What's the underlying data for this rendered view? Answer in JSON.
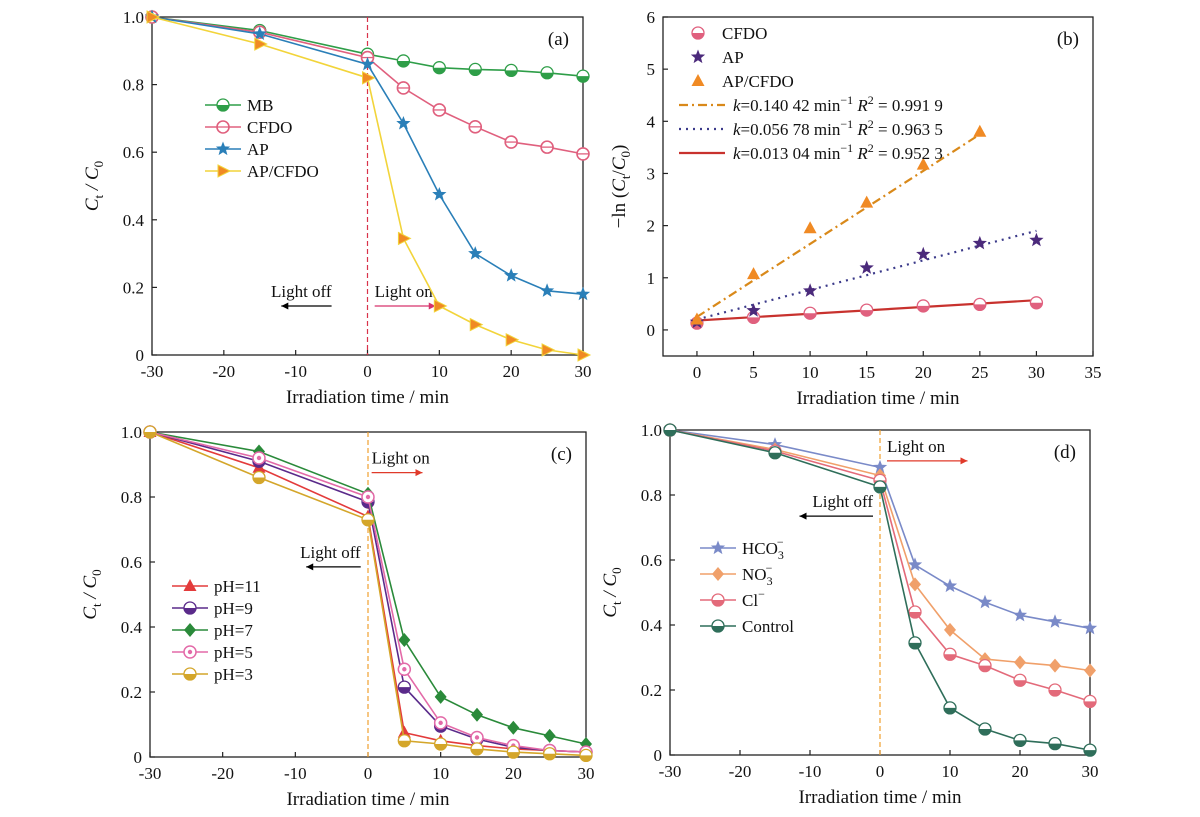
{
  "chart_data": [
    {
      "type": "line",
      "panel_label": "(a)",
      "xlabel": "Irradiation time / min",
      "ylabel_main": "C",
      "ylabel_sub": "t",
      "ylabel_mid": " / C",
      "ylabel_sub2": "0",
      "xlim": [
        -30,
        30
      ],
      "ylim": [
        0,
        1.0
      ],
      "xticks": [
        "-30",
        "-20",
        "-10",
        "0",
        "10",
        "20",
        "30"
      ],
      "yticks": [
        "0",
        "0.2",
        "0.4",
        "0.6",
        "0.8",
        "1.0"
      ],
      "xtick_values": [
        -30,
        -20,
        -10,
        0,
        10,
        20,
        30
      ],
      "ytick_values": [
        0,
        0.2,
        0.4,
        0.6,
        0.8,
        1.0
      ],
      "vline_x": 0,
      "annotations": [
        {
          "text": "Light off",
          "x": -5,
          "y": 0.145,
          "arrow_to": -12,
          "color": "#000000"
        },
        {
          "text": "Light on",
          "x": 1,
          "y": 0.145,
          "arrow_to": 9.5,
          "color": "#d6336c"
        }
      ],
      "legend_position": "left-middle",
      "series": [
        {
          "name": "MB",
          "color": "#2e9e48",
          "marker": "circle-half",
          "x": [
            -30,
            -15,
            0,
            5,
            10,
            15,
            20,
            25,
            30
          ],
          "y": [
            1.0,
            0.96,
            0.89,
            0.87,
            0.85,
            0.845,
            0.842,
            0.835,
            0.825
          ]
        },
        {
          "name": "CFDO",
          "color": "#e0607e",
          "marker": "circle-open",
          "x": [
            -30,
            -15,
            0,
            5,
            10,
            15,
            20,
            25,
            30
          ],
          "y": [
            1.0,
            0.955,
            0.88,
            0.79,
            0.725,
            0.675,
            0.63,
            0.615,
            0.595
          ]
        },
        {
          "name": "AP",
          "color": "#2a7fb8",
          "marker": "star",
          "x": [
            -30,
            -15,
            0,
            5,
            10,
            15,
            20,
            25,
            30
          ],
          "y": [
            1.0,
            0.95,
            0.86,
            0.685,
            0.475,
            0.3,
            0.235,
            0.19,
            0.18
          ]
        },
        {
          "name": "AP/CFDO",
          "color": "#f2d43a",
          "marker": "triangle-right",
          "x": [
            -30,
            -15,
            0,
            5,
            10,
            15,
            20,
            25,
            30
          ],
          "y": [
            1.0,
            0.92,
            0.82,
            0.345,
            0.145,
            0.09,
            0.045,
            0.015,
            0.0
          ]
        }
      ]
    },
    {
      "type": "scatter",
      "panel_label": "(b)",
      "xlabel": "Irradiation time / min",
      "ylabel_prefix": "−ln (",
      "ylabel_main": "C",
      "ylabel_sub": "t",
      "ylabel_mid": "/",
      "ylabel_main2": "C",
      "ylabel_sub2": "0",
      "ylabel_suffix": ")",
      "xlim": [
        -3,
        35
      ],
      "ylim": [
        -0.5,
        6
      ],
      "xticks": [
        "0",
        "5",
        "10",
        "15",
        "20",
        "25",
        "30",
        "35"
      ],
      "yticks": [
        "0",
        "1",
        "2",
        "3",
        "4",
        "5",
        "6"
      ],
      "xtick_values": [
        0,
        5,
        10,
        15,
        20,
        25,
        30,
        35
      ],
      "ytick_values": [
        0,
        1,
        2,
        3,
        4,
        5,
        6
      ],
      "legend_position": "top-left",
      "series": [
        {
          "name": "CFDO",
          "color": "#e0607e",
          "marker": "circle-half",
          "x": [
            0,
            5,
            10,
            15,
            20,
            25,
            30
          ],
          "y": [
            0.13,
            0.24,
            0.32,
            0.38,
            0.46,
            0.49,
            0.52
          ]
        },
        {
          "name": "AP",
          "color": "#4b2a7b",
          "marker": "star",
          "x": [
            0,
            5,
            10,
            15,
            20,
            25,
            30
          ],
          "y": [
            0.15,
            0.37,
            0.75,
            1.19,
            1.45,
            1.66,
            1.72
          ]
        },
        {
          "name": "AP/CFDO",
          "color": "#f08a24",
          "marker": "triangle-up",
          "x": [
            0,
            5,
            10,
            15,
            20,
            25
          ],
          "y": [
            0.2,
            1.07,
            1.95,
            2.44,
            3.17,
            3.8
          ]
        }
      ],
      "fits": [
        {
          "legend": "=0.140 42 min",
          "sup": "−1",
          "r2": " = 0.991 9",
          "color": "#d9891a",
          "dash": "9,4,2,4",
          "x": [
            0,
            25
          ],
          "y": [
            0.25,
            3.75
          ]
        },
        {
          "legend": "=0.056 78 min",
          "sup": "−1",
          "r2": " = 0.963 5",
          "color": "#3b3a8a",
          "dash": "2,5",
          "x": [
            0,
            30
          ],
          "y": [
            0.2,
            1.9
          ]
        },
        {
          "legend": "=0.013 04 min",
          "sup": "−1",
          "r2": " = 0.952 3",
          "color": "#c8322e",
          "dash": "",
          "x": [
            0,
            30
          ],
          "y": [
            0.18,
            0.57
          ]
        }
      ]
    },
    {
      "type": "line",
      "panel_label": "(c)",
      "xlabel": "Irradiation time / min",
      "ylabel_main": "C",
      "ylabel_sub": "t",
      "ylabel_mid": " / C",
      "ylabel_sub2": "0",
      "xlim": [
        -30,
        30
      ],
      "ylim": [
        0,
        1.0
      ],
      "xticks": [
        "-30",
        "-20",
        "-10",
        "0",
        "10",
        "20",
        "30"
      ],
      "yticks": [
        "0",
        "0.2",
        "0.4",
        "0.6",
        "0.8",
        "1.0"
      ],
      "xtick_values": [
        -30,
        -20,
        -10,
        0,
        10,
        20,
        30
      ],
      "ytick_values": [
        0,
        0.2,
        0.4,
        0.6,
        0.8,
        1.0
      ],
      "vline_x": 0,
      "annotations": [
        {
          "text": "Light on",
          "x": 0.5,
          "y": 0.875,
          "arrow_to": 7.5,
          "color": "#e03a2a"
        },
        {
          "text": "Light off",
          "x": -1,
          "y": 0.585,
          "arrow_to": -8.5,
          "color": "#000000"
        }
      ],
      "legend_position": "left-bottom",
      "series": [
        {
          "name": "pH=11",
          "color": "#e33b3b",
          "marker": "triangle-up",
          "x": [
            -30,
            -15,
            0,
            5,
            10,
            15,
            20,
            25,
            30
          ],
          "y": [
            1.0,
            0.89,
            0.74,
            0.075,
            0.05,
            0.035,
            0.025,
            0.02,
            0.015
          ]
        },
        {
          "name": "pH=9",
          "color": "#5a2a8a",
          "marker": "circle-half",
          "x": [
            -30,
            -15,
            0,
            5,
            10,
            15,
            20,
            25,
            30
          ],
          "y": [
            1.0,
            0.91,
            0.785,
            0.215,
            0.095,
            0.055,
            0.03,
            0.02,
            0.015
          ]
        },
        {
          "name": "pH=7",
          "color": "#2a8a3a",
          "marker": "diamond",
          "x": [
            -30,
            -15,
            0,
            5,
            10,
            15,
            20,
            25,
            30
          ],
          "y": [
            1.0,
            0.94,
            0.81,
            0.36,
            0.185,
            0.13,
            0.09,
            0.065,
            0.04
          ]
        },
        {
          "name": "pH=5",
          "color": "#e36aa8",
          "marker": "circle-dot",
          "x": [
            -30,
            -15,
            0,
            5,
            10,
            15,
            20,
            25,
            30
          ],
          "y": [
            1.0,
            0.92,
            0.8,
            0.27,
            0.105,
            0.06,
            0.035,
            0.02,
            0.015
          ]
        },
        {
          "name": "pH=3",
          "color": "#d4a62a",
          "marker": "circle-half",
          "x": [
            -30,
            -15,
            0,
            5,
            10,
            15,
            20,
            25,
            30
          ],
          "y": [
            1.0,
            0.86,
            0.73,
            0.05,
            0.04,
            0.025,
            0.015,
            0.01,
            0.005
          ]
        }
      ]
    },
    {
      "type": "line",
      "panel_label": "(d)",
      "xlabel": "Irradiation time / min",
      "ylabel_main": "C",
      "ylabel_sub": "t",
      "ylabel_mid": " / C",
      "ylabel_sub2": "0",
      "xlim": [
        -30,
        30
      ],
      "ylim": [
        0,
        1.0
      ],
      "xticks": [
        "-30",
        "-20",
        "-10",
        "0",
        "10",
        "20",
        "30"
      ],
      "yticks": [
        "0",
        "0.2",
        "0.4",
        "0.6",
        "0.8",
        "1.0"
      ],
      "xtick_values": [
        -30,
        -20,
        -10,
        0,
        10,
        20,
        30
      ],
      "ytick_values": [
        0,
        0.2,
        0.4,
        0.6,
        0.8,
        1.0
      ],
      "vline_x": 0,
      "annotations": [
        {
          "text": "Light on",
          "x": 1,
          "y": 0.905,
          "arrow_to": 12.5,
          "color": "#e03a2a"
        },
        {
          "text": "Light off",
          "x": -1,
          "y": 0.735,
          "arrow_to": -11.5,
          "color": "#000000"
        }
      ],
      "legend_position": "left-middle",
      "series": [
        {
          "name": "HCO",
          "name_sub": "3",
          "name_sup": "−",
          "color": "#7a8ac8",
          "marker": "star",
          "x": [
            -30,
            -15,
            0,
            5,
            10,
            15,
            20,
            25,
            30
          ],
          "y": [
            1.0,
            0.955,
            0.885,
            0.585,
            0.52,
            0.47,
            0.43,
            0.41,
            0.39
          ]
        },
        {
          "name": "NO",
          "name_sub": "3",
          "name_sup": "−",
          "color": "#f0a06a",
          "marker": "diamond",
          "x": [
            -30,
            -15,
            0,
            5,
            10,
            15,
            20,
            25,
            30
          ],
          "y": [
            1.0,
            0.94,
            0.86,
            0.525,
            0.385,
            0.295,
            0.285,
            0.275,
            0.26
          ]
        },
        {
          "name": "Cl",
          "name_sub": "",
          "name_sup": "−",
          "color": "#e36a7a",
          "marker": "circle-half",
          "x": [
            -30,
            -15,
            0,
            5,
            10,
            15,
            20,
            25,
            30
          ],
          "y": [
            1.0,
            0.935,
            0.845,
            0.44,
            0.31,
            0.275,
            0.23,
            0.2,
            0.165
          ]
        },
        {
          "name": "Control",
          "name_sub": "",
          "name_sup": "",
          "color": "#2f6e5a",
          "marker": "circle-half",
          "x": [
            -30,
            -15,
            0,
            5,
            10,
            15,
            20,
            25,
            30
          ],
          "y": [
            1.0,
            0.93,
            0.825,
            0.345,
            0.145,
            0.08,
            0.045,
            0.035,
            0.015
          ]
        }
      ]
    }
  ]
}
